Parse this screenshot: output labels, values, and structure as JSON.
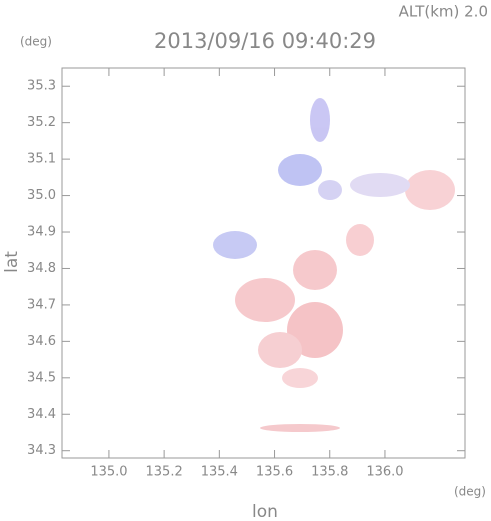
{
  "chart_data": {
    "type": "map",
    "title": "2013/09/16 09:40:29",
    "annotation": "ALT(km) 2.0",
    "xlabel": "lon",
    "ylabel": "lat",
    "xunit": "(deg)",
    "yunit": "(deg)",
    "xlim": [
      134.83,
      136.29
    ],
    "ylim": [
      34.28,
      35.35
    ],
    "xticks": [
      {
        "value": 135,
        "label": "135.0"
      },
      135.2,
      135.4,
      135.6,
      135.8,
      {
        "value": 136,
        "label": "136.0"
      }
    ],
    "yticks": [
      34.3,
      34.4,
      34.5,
      34.6,
      34.7,
      34.8,
      34.9,
      {
        "value": 35,
        "label": "35.0"
      },
      35.1,
      35.2,
      35.3
    ]
  }
}
